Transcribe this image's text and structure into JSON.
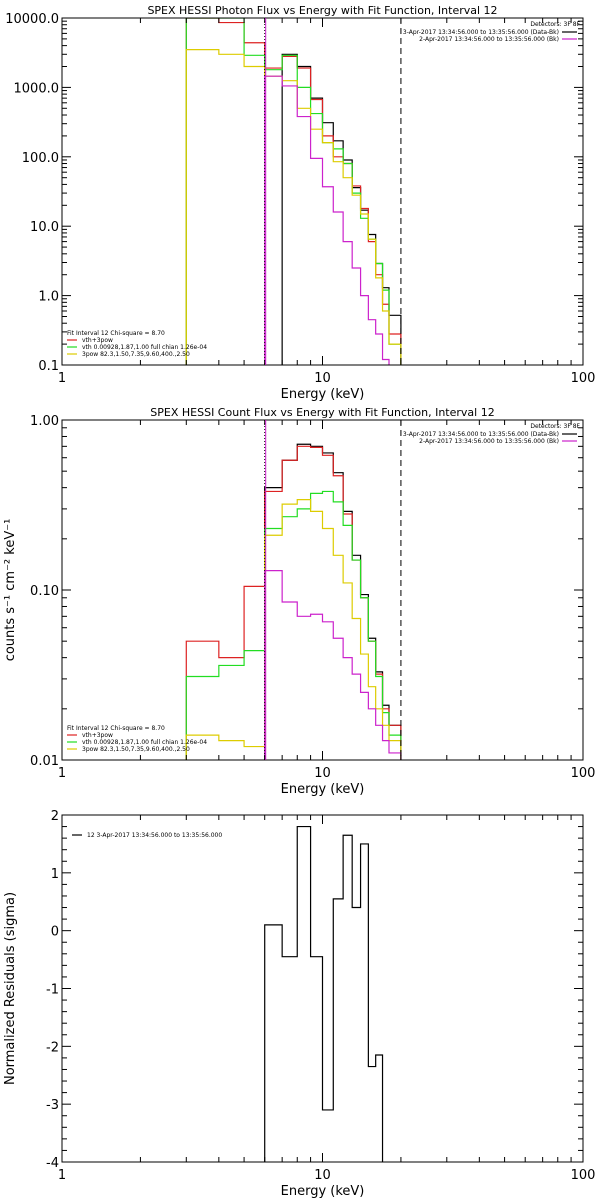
{
  "chart_data": [
    {
      "type": "line",
      "title": "SPEX HESSI Photon Flux vs Energy with Fit Function, Interval 12",
      "xlabel": "Energy (keV)",
      "ylabel": "",
      "xscale": "log",
      "yscale": "log",
      "xlim": [
        1,
        100
      ],
      "ylim": [
        0.1,
        10000
      ],
      "xticks": [
        {
          "value": 1,
          "label": "1"
        },
        {
          "value": 10,
          "label": "10"
        },
        {
          "value": 100,
          "label": "100"
        }
      ],
      "yticks": [
        {
          "value": 0.1,
          "label": "0.1"
        },
        {
          "value": 1,
          "label": "1.0"
        },
        {
          "value": 10,
          "label": "10.0"
        },
        {
          "value": 100,
          "label": "100.0"
        },
        {
          "value": 1000,
          "label": "1000.0"
        },
        {
          "value": 10000,
          "label": "10000.0"
        }
      ],
      "vlines": [
        {
          "x": 6.0,
          "style": "dotted",
          "color": "#000000"
        },
        {
          "x": 6.0,
          "style": "solid",
          "color": "#cc22cc"
        },
        {
          "x": 20.0,
          "style": "dashed",
          "color": "#000000"
        }
      ],
      "header_text": {
        "title": "Detectors: 3F 8F",
        "lines": [
          {
            "text": "3-Apr-2017 13:34:56.000 to 13:35:56.000 (Data-Bk)",
            "color": "#000000"
          },
          {
            "text": "2-Apr-2017 13:34:56.000 to 13:35:56.000 (Bk)",
            "color": "#cc22cc"
          }
        ]
      },
      "legend": {
        "position": "bottom-left",
        "header": "Fit Interval 12   Chi-square = 8.70",
        "entries": [
          {
            "text": "vth+3pow",
            "color": "#dd2222"
          },
          {
            "text": "vth 0.00928,1.87,1.00  full chian 1.26e-04",
            "color": "#22dd22"
          },
          {
            "text": "3pow 82.3,1.50,7.35,9.60,400.,2.50",
            "color": "#ddcc00"
          }
        ]
      },
      "edges": [
        3,
        4,
        5,
        6,
        7,
        8,
        9,
        10,
        11,
        12,
        13,
        14,
        15,
        16,
        17,
        18,
        20
      ],
      "series": [
        {
          "color": "#000000",
          "values": [
            null,
            null,
            null,
            null,
            3000,
            2000,
            700,
            310,
            170,
            90,
            36,
            17,
            7.6,
            2.9,
            1.3,
            0.52
          ]
        },
        {
          "color": "#dd2222",
          "values": [
            10000,
            8600,
            4400,
            1900,
            2800,
            1900,
            670,
            200,
            100,
            80,
            38,
            18,
            6,
            2.0,
            0.75,
            0.28
          ]
        },
        {
          "color": "#22dd22",
          "values": [
            10000,
            10000,
            2900,
            1800,
            2900,
            1000,
            420,
            160,
            130,
            80,
            30,
            13,
            6.5,
            2.9,
            1.2,
            0.2
          ]
        },
        {
          "color": "#ddcc00",
          "values": [
            3500,
            3000,
            2000,
            1450,
            1250,
            500,
            250,
            160,
            85,
            50,
            28,
            15,
            6.5,
            1.8,
            0.6,
            0.2
          ]
        },
        {
          "color": "#cc22cc",
          "values": [
            null,
            null,
            null,
            1450,
            1050,
            380,
            95,
            37,
            16,
            6,
            2.5,
            1.0,
            0.45,
            0.28,
            0.12,
            null
          ]
        }
      ]
    },
    {
      "type": "line",
      "title": "SPEX HESSI Count Flux vs Energy with Fit Function, Interval 12",
      "xlabel": "Energy (keV)",
      "ylabel": "counts s⁻¹ cm⁻² keV⁻¹",
      "xscale": "log",
      "yscale": "log",
      "xlim": [
        1,
        100
      ],
      "ylim": [
        0.01,
        1.0
      ],
      "xticks": [
        {
          "value": 1,
          "label": "1"
        },
        {
          "value": 10,
          "label": "10"
        },
        {
          "value": 100,
          "label": "100"
        }
      ],
      "yticks": [
        {
          "value": 0.01,
          "label": "0.01"
        },
        {
          "value": 0.1,
          "label": "0.10"
        },
        {
          "value": 1,
          "label": "1.00"
        }
      ],
      "vlines": [
        {
          "x": 6.0,
          "style": "dotted",
          "color": "#000000"
        },
        {
          "x": 6.0,
          "style": "solid",
          "color": "#cc22cc"
        },
        {
          "x": 20.0,
          "style": "dashed",
          "color": "#000000"
        }
      ],
      "header_text": {
        "title": "Detectors: 3F 8F",
        "lines": [
          {
            "text": "3-Apr-2017 13:34:56.000 to 13:35:56.000 (Data-Bk)",
            "color": "#000000"
          },
          {
            "text": "2-Apr-2017 13:34:56.000 to 13:35:56.000 (Bk)",
            "color": "#cc22cc"
          }
        ]
      },
      "legend": {
        "position": "bottom-left",
        "header": "Fit Interval 12   Chi-square = 8.70",
        "entries": [
          {
            "text": "vth+3pow",
            "color": "#dd2222"
          },
          {
            "text": "vth 0.00928,1.87,1.00  full chian 1.26e-04",
            "color": "#22dd22"
          },
          {
            "text": "3pow 82.3,1.50,7.35,9.60,400.,2.50",
            "color": "#ddcc00"
          }
        ]
      },
      "edges": [
        3,
        4,
        5,
        6,
        7,
        8,
        9,
        10,
        11,
        12,
        13,
        14,
        15,
        16,
        17,
        18,
        20
      ],
      "series": [
        {
          "color": "#000000",
          "values": [
            null,
            null,
            null,
            0.4,
            0.58,
            0.72,
            0.7,
            0.64,
            0.49,
            0.29,
            0.16,
            0.094,
            0.052,
            0.033,
            0.021,
            0.016
          ]
        },
        {
          "color": "#dd2222",
          "values": [
            0.05,
            0.04,
            0.105,
            0.38,
            0.58,
            0.7,
            0.69,
            0.62,
            0.47,
            0.28,
            0.15,
            0.09,
            0.05,
            0.032,
            0.02,
            0.016
          ]
        },
        {
          "color": "#22dd22",
          "values": [
            0.031,
            0.036,
            0.044,
            0.23,
            0.27,
            0.3,
            0.37,
            0.38,
            0.33,
            0.24,
            0.15,
            0.09,
            0.05,
            0.031,
            0.019,
            0.014
          ]
        },
        {
          "color": "#ddcc00",
          "values": [
            0.014,
            0.013,
            0.012,
            0.21,
            0.32,
            0.34,
            0.29,
            0.23,
            0.16,
            0.11,
            0.068,
            0.042,
            0.027,
            0.02,
            0.016,
            0.013
          ]
        },
        {
          "color": "#cc22cc",
          "values": [
            null,
            null,
            null,
            0.13,
            0.085,
            0.07,
            0.072,
            0.065,
            0.052,
            0.04,
            0.032,
            0.025,
            0.02,
            0.016,
            0.013,
            0.011
          ]
        }
      ]
    },
    {
      "type": "line",
      "title": "",
      "xlabel": "Energy (keV)",
      "ylabel": "Normalized Residuals (sigma)",
      "xscale": "log",
      "yscale": "linear",
      "xlim": [
        1,
        100
      ],
      "ylim": [
        -4,
        2
      ],
      "xticks": [
        {
          "value": 1,
          "label": "1"
        },
        {
          "value": 10,
          "label": "10"
        },
        {
          "value": 100,
          "label": "100"
        }
      ],
      "yticks": [
        {
          "value": -4,
          "label": "-4"
        },
        {
          "value": -3,
          "label": "-3"
        },
        {
          "value": -2,
          "label": "-2"
        },
        {
          "value": -1,
          "label": "-1"
        },
        {
          "value": 0,
          "label": "0"
        },
        {
          "value": 1,
          "label": "1"
        },
        {
          "value": 2,
          "label": "2"
        }
      ],
      "legend": {
        "position": "top-left",
        "header": "",
        "entries": [
          {
            "text": "12  3-Apr-2017 13:34:56.000 to 13:35:56.000",
            "color": "#000000"
          }
        ]
      },
      "edges": [
        6,
        7,
        8,
        9,
        10,
        11,
        12,
        13,
        14,
        15,
        16,
        17,
        18,
        20
      ],
      "series": [
        {
          "color": "#000000",
          "values": [
            0.1,
            -0.45,
            1.8,
            -0.45,
            -3.1,
            0.55,
            1.65,
            0.4,
            1.5,
            -2.35,
            -2.15,
            null,
            null
          ]
        }
      ]
    }
  ]
}
